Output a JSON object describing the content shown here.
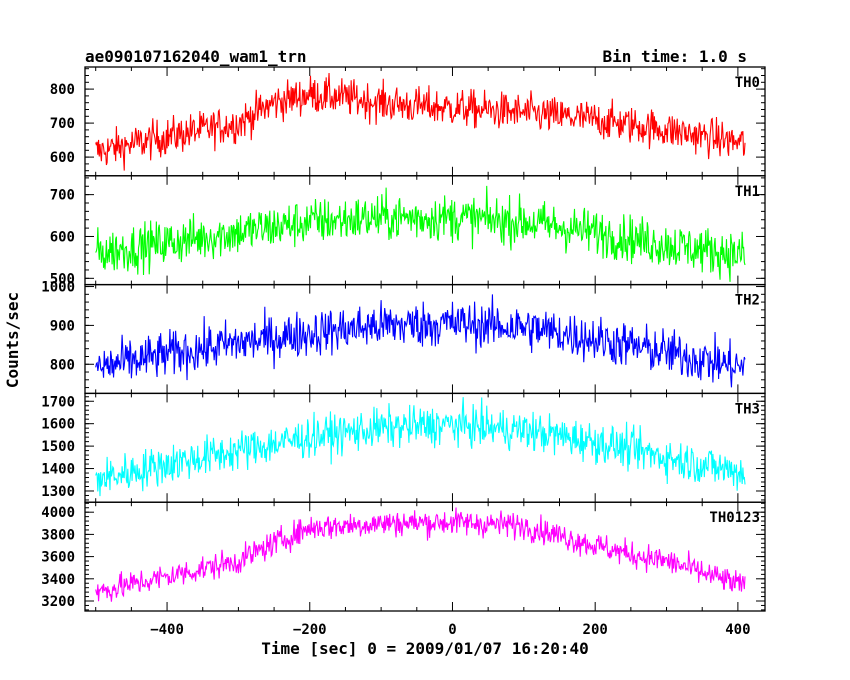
{
  "header": {
    "title": "ae090107162040_wam1_trn",
    "bin_time": "Bin time: 1.0 s"
  },
  "axes": {
    "ylabel": "Counts/sec",
    "xlabel": "Time [sec] 0 = 2009/01/07 16:20:40",
    "xlim": [
      -515,
      438
    ],
    "xticks": [
      -400,
      -200,
      0,
      200,
      400
    ],
    "xtick_labels": [
      "−400",
      "−200",
      "0",
      "200",
      "400"
    ]
  },
  "chart_data": {
    "type": "line",
    "title": "ae090107162040_wam1_trn",
    "xlabel": "Time [sec] 0 = 2009/01/07 16:20:40",
    "ylabel": "Counts/sec",
    "bin_time_s": 1.0,
    "x_range": [
      -500,
      410
    ],
    "panels": [
      {
        "name": "TH0",
        "color": "#ff0000",
        "ylim": [
          545,
          865
        ],
        "yticks": [
          600,
          700,
          800
        ],
        "x": [
          -500,
          -400,
          -300,
          -250,
          -200,
          -150,
          -100,
          -50,
          0,
          100,
          200,
          300,
          410
        ],
        "y": [
          615,
          660,
          700,
          760,
          785,
          775,
          760,
          750,
          745,
          730,
          710,
          680,
          640
        ],
        "noise": 28
      },
      {
        "name": "TH1",
        "color": "#00ff00",
        "ylim": [
          485,
          745
        ],
        "yticks": [
          500,
          600,
          700
        ],
        "x": [
          -500,
          -400,
          -300,
          -200,
          -100,
          0,
          100,
          200,
          300,
          410
        ],
        "y": [
          560,
          585,
          610,
          635,
          645,
          645,
          635,
          610,
          580,
          555
        ],
        "noise": 28
      },
      {
        "name": "TH2",
        "color": "#0000ff",
        "ylim": [
          725,
          1005
        ],
        "yticks": [
          800,
          900,
          1000
        ],
        "x": [
          -500,
          -400,
          -300,
          -200,
          -100,
          0,
          100,
          200,
          300,
          410
        ],
        "y": [
          790,
          825,
          855,
          880,
          900,
          905,
          895,
          865,
          830,
          790
        ],
        "noise": 30
      },
      {
        "name": "TH3",
        "color": "#00ffff",
        "ylim": [
          1250,
          1735
        ],
        "yticks": [
          1300,
          1400,
          1500,
          1600,
          1700
        ],
        "x": [
          -500,
          -400,
          -300,
          -200,
          -100,
          0,
          100,
          200,
          300,
          410
        ],
        "y": [
          1350,
          1420,
          1480,
          1540,
          1580,
          1595,
          1570,
          1520,
          1450,
          1380
        ],
        "noise": 45
      },
      {
        "name": "TH0123",
        "color": "#ff00ff",
        "ylim": [
          3110,
          4090
        ],
        "yticks": [
          3200,
          3400,
          3600,
          3800,
          4000
        ],
        "x": [
          -500,
          -400,
          -300,
          -250,
          -200,
          -100,
          0,
          100,
          200,
          250,
          300,
          410
        ],
        "y": [
          3280,
          3420,
          3560,
          3720,
          3860,
          3900,
          3910,
          3880,
          3700,
          3620,
          3560,
          3330
        ],
        "noise": 60
      }
    ]
  }
}
